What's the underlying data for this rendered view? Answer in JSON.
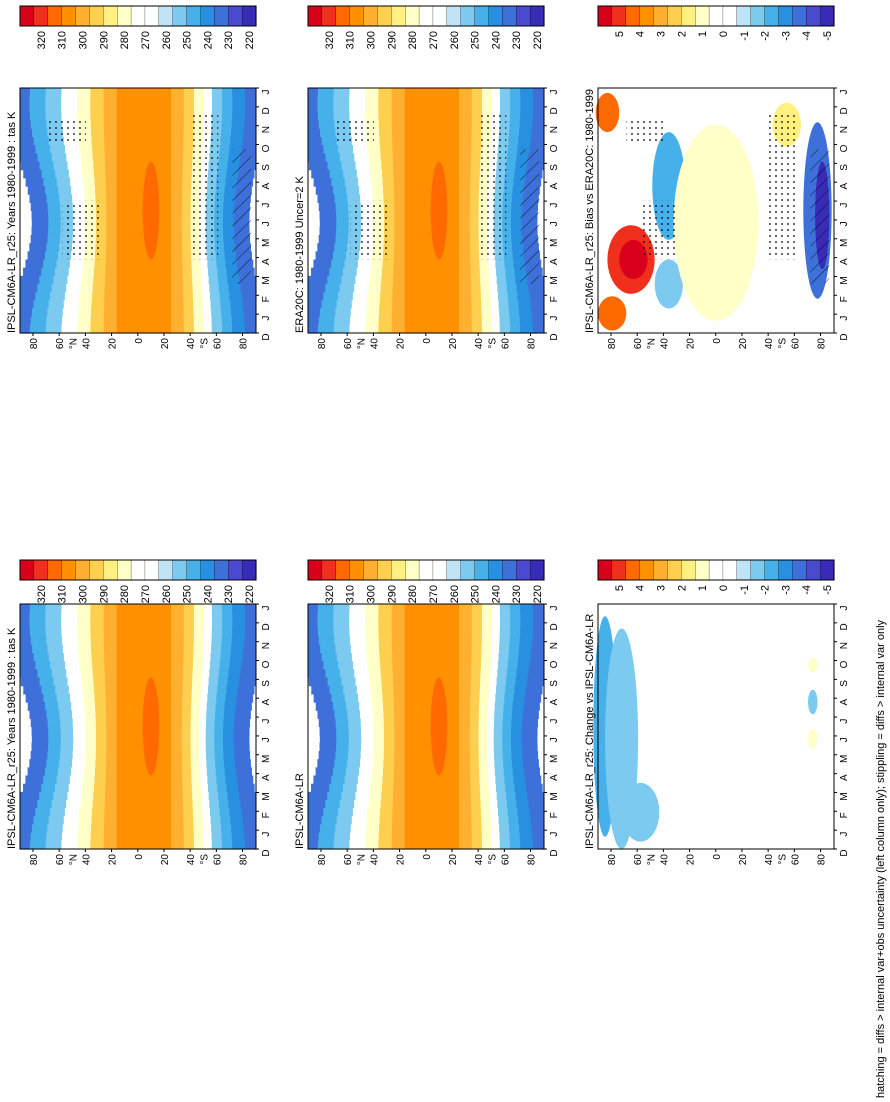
{
  "figure": {
    "orientation": "rotated-90-clockwise",
    "footnote": "hatching = diffs > internal var+obs uncertainty (left column only); stippling = diffs > internal var only"
  },
  "colorbars": {
    "absolute": {
      "ticks": [
        "320",
        "310",
        "300",
        "290",
        "280",
        "270",
        "260",
        "250",
        "240",
        "230",
        "220"
      ],
      "colors": [
        "#d9001c",
        "#f0301c",
        "#ff6a00",
        "#ff9000",
        "#ffb030",
        "#ffd050",
        "#fff080",
        "#ffffc8",
        "#ffffff",
        "#ffffff",
        "#bfe4f8",
        "#7ccaf0",
        "#45b0ea",
        "#2890e0",
        "#3d70d8",
        "#4a4ad0",
        "#3a2ab8"
      ]
    },
    "difference": {
      "ticks": [
        "5",
        "4",
        "3",
        "2",
        "1",
        "0",
        "-1",
        "-2",
        "-3",
        "-4",
        "-5"
      ],
      "colors": [
        "#d9001c",
        "#f0301c",
        "#ff6a00",
        "#ff9000",
        "#ffb030",
        "#ffd050",
        "#fff080",
        "#ffffc8",
        "#ffffff",
        "#ffffff",
        "#bfe4f8",
        "#7ccaf0",
        "#45b0ea",
        "#2890e0",
        "#3d70d8",
        "#4a4ad0",
        "#3a2ab8"
      ]
    }
  },
  "axis_labels": {
    "lat_ticks": [
      "80",
      "60",
      "40",
      "20",
      "0",
      "20",
      "40",
      "60",
      "80"
    ],
    "hemi_n": "°N",
    "hemi_s": "°S",
    "months": [
      "D",
      "J",
      "F",
      "M",
      "A",
      "M",
      "J",
      "J",
      "A",
      "S",
      "O",
      "N",
      "D",
      "J"
    ]
  },
  "panels": [
    {
      "id": "p1",
      "title": "IPSL-CM6A-LR_r25: Years 1980-1999 : tas K",
      "kind": "absolute",
      "stipple": true,
      "hatch": true
    },
    {
      "id": "p2",
      "title": "IPSL-CM6A-LR_r25: Years 1980-1999 : tas K",
      "kind": "absolute",
      "stipple": false,
      "hatch": false
    },
    {
      "id": "p3",
      "title": "ERA20C: 1980-1999 Uncer=2 K",
      "kind": "absolute",
      "stipple": true,
      "hatch": true
    },
    {
      "id": "p4",
      "title": "IPSL-CM6A-LR",
      "kind": "absolute",
      "stipple": false,
      "hatch": false
    },
    {
      "id": "p5",
      "title": "IPSL-CM6A-LR_r25: Bias vs ERA20C: 1980-1999",
      "kind": "difference",
      "stipple": true,
      "hatch": true
    },
    {
      "id": "p6",
      "title": "IPSL-CM6A-LR_r25: Change vs IPSL-CM6A-LR",
      "kind": "difference",
      "stipple": false,
      "hatch": false
    }
  ],
  "chart_data": [
    {
      "type": "heatmap",
      "title": "IPSL-CM6A-LR_r25: Years 1980-1999 : tas K",
      "x": "month",
      "y": "latitude",
      "zlim": [
        220,
        320
      ],
      "description_values": {
        "tropics_max": 305,
        "north_pole_winter": 245,
        "south_pole_winter": 215
      }
    },
    {
      "type": "heatmap",
      "title": "IPSL-CM6A-LR_r25: Years 1980-1999 : tas K",
      "x": "month",
      "y": "latitude",
      "zlim": [
        220,
        320
      ]
    },
    {
      "type": "heatmap",
      "title": "ERA20C: 1980-1999 Uncer=2 K",
      "x": "month",
      "y": "latitude",
      "zlim": [
        220,
        320
      ]
    },
    {
      "type": "heatmap",
      "title": "IPSL-CM6A-LR",
      "x": "month",
      "y": "latitude",
      "zlim": [
        220,
        320
      ]
    },
    {
      "type": "heatmap",
      "title": "IPSL-CM6A-LR_r25: Bias vs ERA20C: 1980-1999",
      "x": "month",
      "y": "latitude",
      "zlim": [
        -5,
        5
      ]
    },
    {
      "type": "heatmap",
      "title": "IPSL-CM6A-LR_r25: Change vs IPSL-CM6A-LR",
      "x": "month",
      "y": "latitude",
      "zlim": [
        -5,
        5
      ]
    }
  ]
}
